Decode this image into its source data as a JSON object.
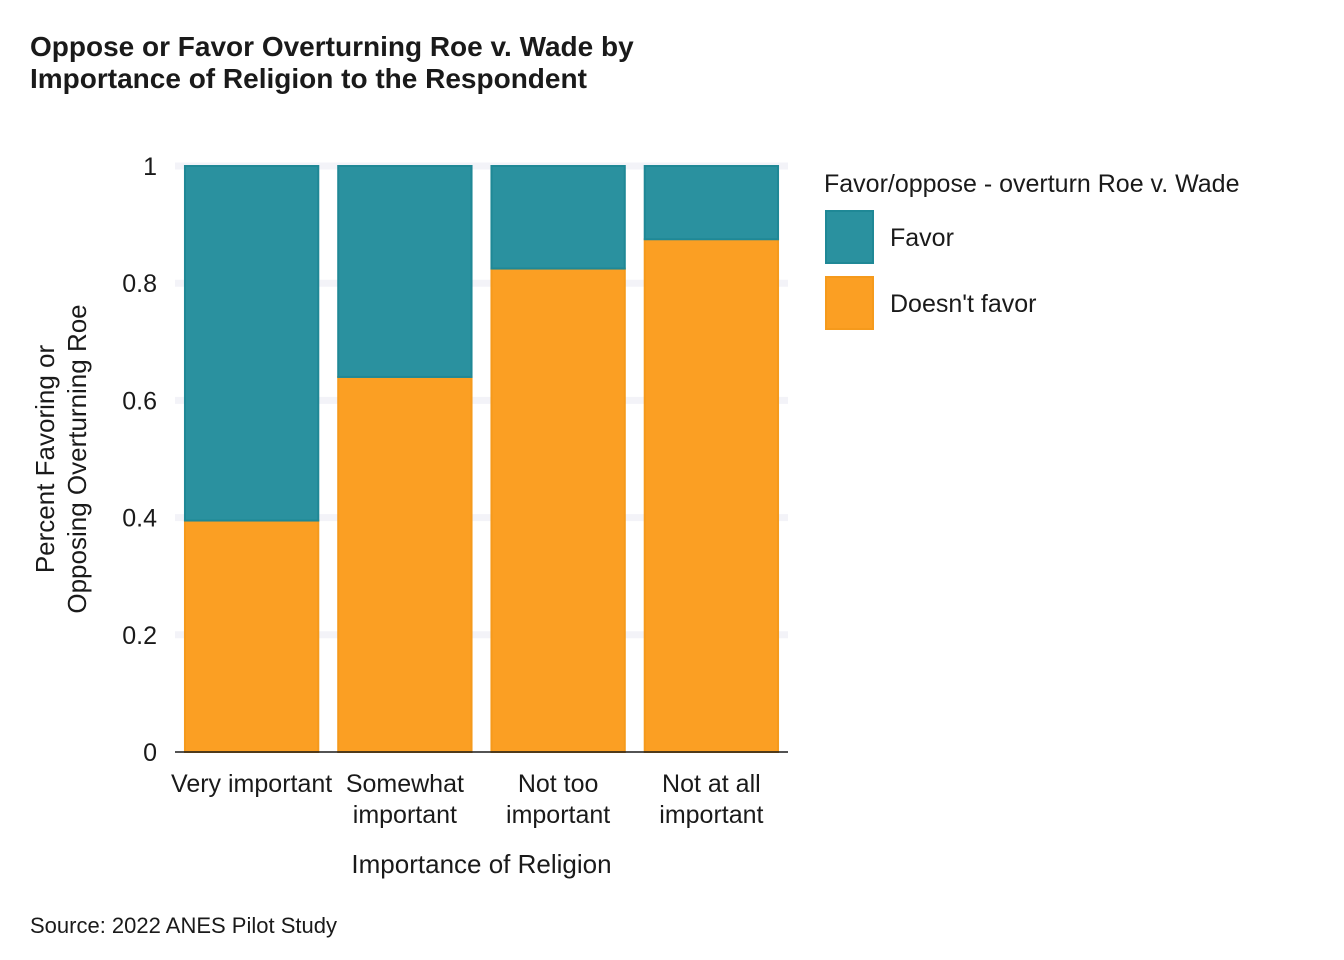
{
  "colors": {
    "favor": "#2a919f",
    "favor_stroke": "#1f8896",
    "doesnt_favor": "#fb9f23",
    "doesnt_favor_stroke": "#f59a1c",
    "grid": "#f3f3f8",
    "axis": "#1a1a1a"
  },
  "chart_data": {
    "type": "bar",
    "stacked": true,
    "title": "Oppose or Favor Overturning Roe v. Wade by Importance of Religion to the Respondent",
    "title_lines": [
      "Oppose or Favor Overturning Roe v. Wade by",
      "Importance of Religion to the Respondent"
    ],
    "xlabel": "Importance of Religion",
    "ylabel": "Percent Favoring or Opposing Overturning Roe",
    "ylabel_lines": [
      "Percent Favoring or",
      "Opposing Overturning Roe"
    ],
    "caption": "Source: 2022 ANES Pilot Study",
    "ylim": [
      0,
      1
    ],
    "yticks": [
      0,
      0.2,
      0.4,
      0.6,
      0.8,
      1
    ],
    "ytick_labels": [
      "0",
      "0.2",
      "0.4",
      "0.6",
      "0.8",
      "1"
    ],
    "grid": true,
    "legend_position": "right",
    "legend_title": "Favor/oppose - overturn Roe v. Wade",
    "categories": [
      "Very important",
      "Somewhat important",
      "Not too important",
      "Not at all important"
    ],
    "category_label_lines": [
      [
        "Very important"
      ],
      [
        "Somewhat",
        "important"
      ],
      [
        "Not too",
        "important"
      ],
      [
        "Not at all",
        "important"
      ]
    ],
    "series": [
      {
        "name": "Favor",
        "values": [
          0.605,
          0.36,
          0.175,
          0.125
        ]
      },
      {
        "name": "Doesn't favor",
        "values": [
          0.395,
          0.64,
          0.825,
          0.875
        ]
      }
    ]
  }
}
